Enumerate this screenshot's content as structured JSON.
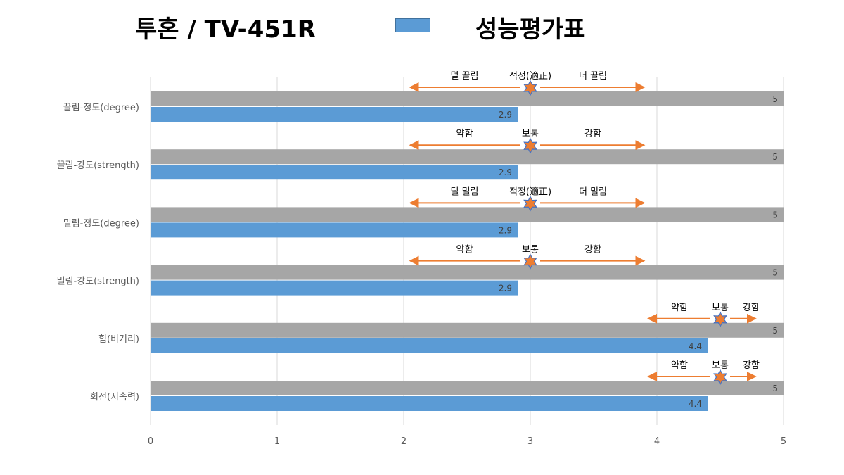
{
  "header": {
    "title_left": "투혼 / TV-451R",
    "title_right": "성능평가표",
    "legend_color": "#5b9bd5"
  },
  "colors": {
    "gray_bar": "#a6a6a6",
    "blue_bar": "#5b9bd5",
    "arrow": "#ed7d31",
    "star_fill": "#ed7d31",
    "star_stroke": "#4472c4",
    "grid": "#d9d9d9"
  },
  "chart_data": {
    "type": "bar",
    "orientation": "horizontal",
    "title": "",
    "xlabel": "",
    "ylabel": "",
    "xlim": [
      0,
      5
    ],
    "x_ticks": [
      "0",
      "1",
      "2",
      "3",
      "4",
      "5"
    ],
    "grid": true,
    "categories": [
      "끌림-정도(degree)",
      "끌림-강도(strength)",
      "밀림-정도(degree)",
      "밀림-강도(strength)",
      "힘(비거리)",
      "회전(지속력)"
    ],
    "series": [
      {
        "values": [
          5,
          5,
          5,
          5,
          5,
          5
        ],
        "labels": [
          "5",
          "5",
          "5",
          "5",
          "5",
          "5"
        ]
      },
      {
        "values": [
          2.9,
          2.9,
          2.9,
          2.9,
          4.4,
          4.4
        ],
        "labels": [
          "2.9",
          "2.9",
          "2.9",
          "2.9",
          "4.4",
          "4.4"
        ]
      }
    ],
    "annotations": [
      {
        "low": "덜 끌림",
        "mid": "적정(適正)",
        "high": "더 끌림",
        "center": 3,
        "range": [
          2.05,
          3.9
        ]
      },
      {
        "low": "약함",
        "mid": "보통",
        "high": "강함",
        "center": 3,
        "range": [
          2.05,
          3.9
        ]
      },
      {
        "low": "덜 밀림",
        "mid": "적정(適正)",
        "high": "더 밀림",
        "center": 3,
        "range": [
          2.05,
          3.9
        ]
      },
      {
        "low": "약함",
        "mid": "보통",
        "high": "강함",
        "center": 3,
        "range": [
          2.05,
          3.9
        ]
      },
      {
        "low": "약함",
        "mid": "보통",
        "high": "강함",
        "center": 4.5,
        "range": [
          3.93,
          4.78
        ]
      },
      {
        "low": "약함",
        "mid": "보통",
        "high": "강함",
        "center": 4.5,
        "range": [
          3.93,
          4.78
        ]
      }
    ]
  }
}
